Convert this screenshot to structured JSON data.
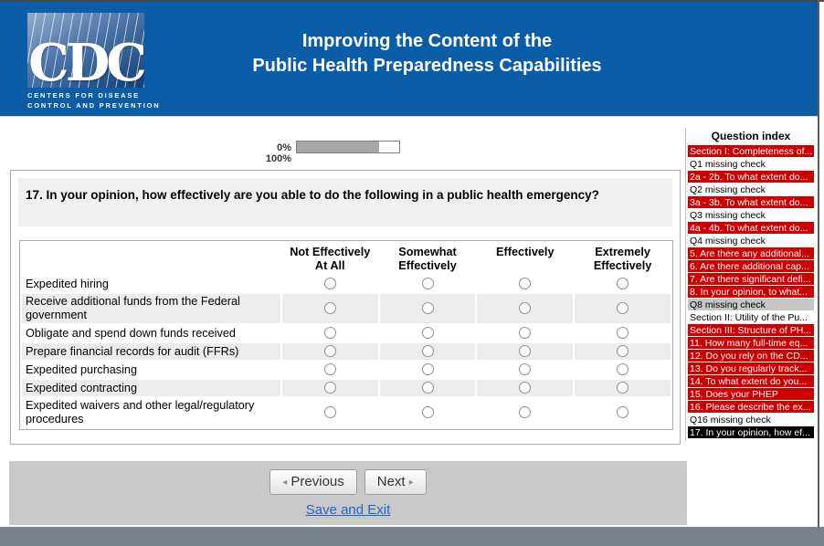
{
  "header": {
    "title_line1": "Improving the Content of the",
    "title_line2": "Public Health Preparedness Capabilities",
    "logo_acronym": "CDC",
    "logo_caption_line1": "CENTERS FOR DISEASE",
    "logo_caption_line2": "CONTROL AND PREVENTION"
  },
  "progress": {
    "start_label": "0%",
    "end_label": "100%",
    "percent_complete": 80
  },
  "question": {
    "text": "17. In your opinion, how effectively are you able to do the following in a public health emergency?",
    "answer_columns": [
      "Not Effectively At All",
      "Somewhat Effectively",
      "Effectively",
      "Extremely Effectively"
    ],
    "items": [
      "Expedited hiring",
      "Receive additional funds from the Federal government",
      "Obligate and spend down funds received",
      "Prepare financial records for audit (FFRs)",
      "Expedited purchasing",
      "Expedited contracting",
      "Expedited waivers and other legal/regulatory procedures"
    ]
  },
  "question_index": {
    "title": "Question index",
    "items": [
      {
        "label": "Section I: Completeness of...",
        "state": "red"
      },
      {
        "label": "Q1 missing check",
        "state": "plain"
      },
      {
        "label": "2a - 2b. To what extent do...",
        "state": "red"
      },
      {
        "label": "Q2 missing check",
        "state": "plain"
      },
      {
        "label": "3a - 3b. To what extent do...",
        "state": "red"
      },
      {
        "label": "Q3 missing check",
        "state": "plain"
      },
      {
        "label": "4a - 4b. To what extent do...",
        "state": "red"
      },
      {
        "label": "Q4 missing check",
        "state": "plain"
      },
      {
        "label": "5. Are there any additional...",
        "state": "red"
      },
      {
        "label": "6. Are there additional cap...",
        "state": "red"
      },
      {
        "label": "7. Are there significant defi...",
        "state": "red"
      },
      {
        "label": "8. In your opinion, to what...",
        "state": "red"
      },
      {
        "label": "Q8 missing check",
        "state": "gray"
      },
      {
        "label": "Section II: Utility of the Pu...",
        "state": "plain"
      },
      {
        "label": "Section III: Structure of PH...",
        "state": "red"
      },
      {
        "label": "11. How many full-time eq...",
        "state": "red"
      },
      {
        "label": "12. Do you rely on the CD...",
        "state": "red"
      },
      {
        "label": "13. Do you regularly track...",
        "state": "red"
      },
      {
        "label": "14. To what extent do you...",
        "state": "red"
      },
      {
        "label": "15. Does your PHEP",
        "state": "red"
      },
      {
        "label": "16. Please describe the ex...",
        "state": "red"
      },
      {
        "label": "Q16 missing check",
        "state": "plain"
      },
      {
        "label": "17. In your opinion, how ef...",
        "state": "current"
      }
    ]
  },
  "navigation": {
    "previous_label": "Previous",
    "next_label": "Next",
    "previous_arrow": "◂",
    "next_arrow": "▸",
    "save_and_exit_label": "Save and Exit"
  },
  "colors": {
    "header_blue": "#0b5da8",
    "index_red": "#cc0000",
    "index_current_black": "#000000",
    "index_gray": "#c6c6c6",
    "link_blue": "#1a66cc",
    "nav_panel_gray": "#c9c9c9",
    "footer_slate": "#76838f",
    "progress_fill_gray": "#a6a6a6",
    "alt_row_gray": "#ececec"
  }
}
